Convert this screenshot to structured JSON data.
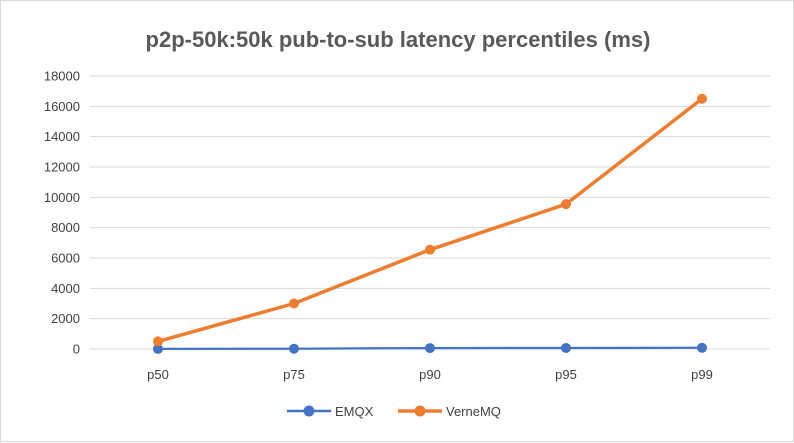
{
  "colors": {
    "emqx": "#4472c4",
    "vernemq": "#ed7d31",
    "grid": "#d9d9d9",
    "text": "#404040",
    "title": "#595959"
  },
  "chart_data": {
    "type": "line",
    "title": "p2p-50k:50k pub-to-sub latency percentiles (ms)",
    "xlabel": "",
    "ylabel": "",
    "categories": [
      "p50",
      "p75",
      "p90",
      "p95",
      "p99"
    ],
    "ylim": [
      0,
      18000
    ],
    "yticks": [
      0,
      2000,
      4000,
      6000,
      8000,
      10000,
      12000,
      14000,
      16000,
      18000
    ],
    "grid": true,
    "legend_position": "bottom",
    "series": [
      {
        "name": "EMQX",
        "values": [
          5,
          20,
          60,
          70,
          80
        ]
      },
      {
        "name": "VerneMQ",
        "values": [
          500,
          3000,
          6550,
          9550,
          16500
        ]
      }
    ]
  }
}
